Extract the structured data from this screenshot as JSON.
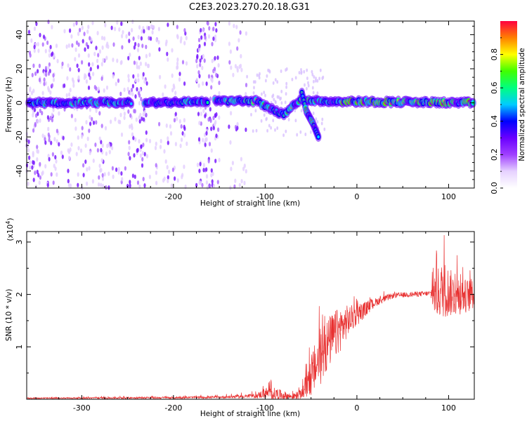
{
  "title": "C2E3.2023.270.20.18.G31",
  "chart_data": [
    {
      "type": "heatmap",
      "xlabel": "Height of straight line (km)",
      "ylabel": "Frequency (Hz)",
      "xlim": [
        -360,
        128
      ],
      "ylim": [
        -50,
        48
      ],
      "xticks": [
        -300,
        -200,
        -100,
        0,
        100
      ],
      "yticks": [
        -40,
        -20,
        0,
        20,
        40
      ],
      "colorbar": {
        "label": "Normalized spectral amplitude",
        "range": [
          0.0,
          1.0
        ],
        "ticks": [
          0.0,
          0.2,
          0.4,
          0.6,
          0.8
        ],
        "tick_labels": [
          "0.0",
          "0.2",
          "0.4",
          "0.6",
          "0.8"
        ],
        "colors": [
          "#ffffff",
          "#e6d2ff",
          "#a040ff",
          "#6a00ff",
          "#0000ff",
          "#00ccff",
          "#00ff80",
          "#40ff00",
          "#ffff00",
          "#ff8000",
          "#ff0040"
        ]
      },
      "ridge": [
        {
          "x": -360,
          "y": 0
        },
        {
          "x": -230,
          "y": 0
        },
        {
          "x": -150,
          "y": 1
        },
        {
          "x": -110,
          "y": 1
        },
        {
          "x": -95,
          "y": -3
        },
        {
          "x": -80,
          "y": -7
        },
        {
          "x": -70,
          "y": -2
        },
        {
          "x": -60,
          "y": 2
        },
        {
          "x": -40,
          "y": 1
        },
        {
          "x": 128,
          "y": 0
        }
      ],
      "branch": [
        {
          "x": -60,
          "y": 6
        },
        {
          "x": -55,
          "y": -5
        },
        {
          "x": -48,
          "y": -12
        },
        {
          "x": -42,
          "y": -20
        }
      ]
    },
    {
      "type": "line",
      "xlabel": "Height of straight line (km)",
      "ylabel": "SNR (10 * v/v)",
      "yscale_label": "(x10",
      "yscale_exp": "4",
      "yscale_close": ")",
      "xlim": [
        -360,
        128
      ],
      "ylim": [
        0,
        3.2
      ],
      "xticks": [
        -300,
        -200,
        -100,
        0,
        100
      ],
      "yticks": [
        1,
        2,
        3
      ],
      "series": [
        {
          "color": "#e83030",
          "envelope": [
            {
              "x": -360,
              "mean": 0.02,
              "noise": 0.01
            },
            {
              "x": -200,
              "mean": 0.03,
              "noise": 0.02
            },
            {
              "x": -150,
              "mean": 0.04,
              "noise": 0.02
            },
            {
              "x": -110,
              "mean": 0.06,
              "noise": 0.04
            },
            {
              "x": -100,
              "mean": 0.12,
              "noise": 0.1
            },
            {
              "x": -90,
              "mean": 0.1,
              "noise": 0.12
            },
            {
              "x": -70,
              "mean": 0.05,
              "noise": 0.05
            },
            {
              "x": -60,
              "mean": 0.1,
              "noise": 0.1
            },
            {
              "x": -50,
              "mean": 0.45,
              "noise": 0.4
            },
            {
              "x": -40,
              "mean": 0.8,
              "noise": 0.55
            },
            {
              "x": -30,
              "mean": 1.1,
              "noise": 0.5
            },
            {
              "x": -20,
              "mean": 1.3,
              "noise": 0.45
            },
            {
              "x": -10,
              "mean": 1.5,
              "noise": 0.3
            },
            {
              "x": 0,
              "mean": 1.6,
              "noise": 0.2
            },
            {
              "x": 20,
              "mean": 1.85,
              "noise": 0.08
            },
            {
              "x": 40,
              "mean": 1.98,
              "noise": 0.05
            },
            {
              "x": 80,
              "mean": 2.02,
              "noise": 0.05
            },
            {
              "x": 85,
              "mean": 2.0,
              "noise": 0.45
            },
            {
              "x": 95,
              "mean": 2.1,
              "noise": 0.55
            },
            {
              "x": 110,
              "mean": 1.95,
              "noise": 0.35
            },
            {
              "x": 128,
              "mean": 2.0,
              "noise": 0.3
            }
          ]
        }
      ]
    }
  ]
}
